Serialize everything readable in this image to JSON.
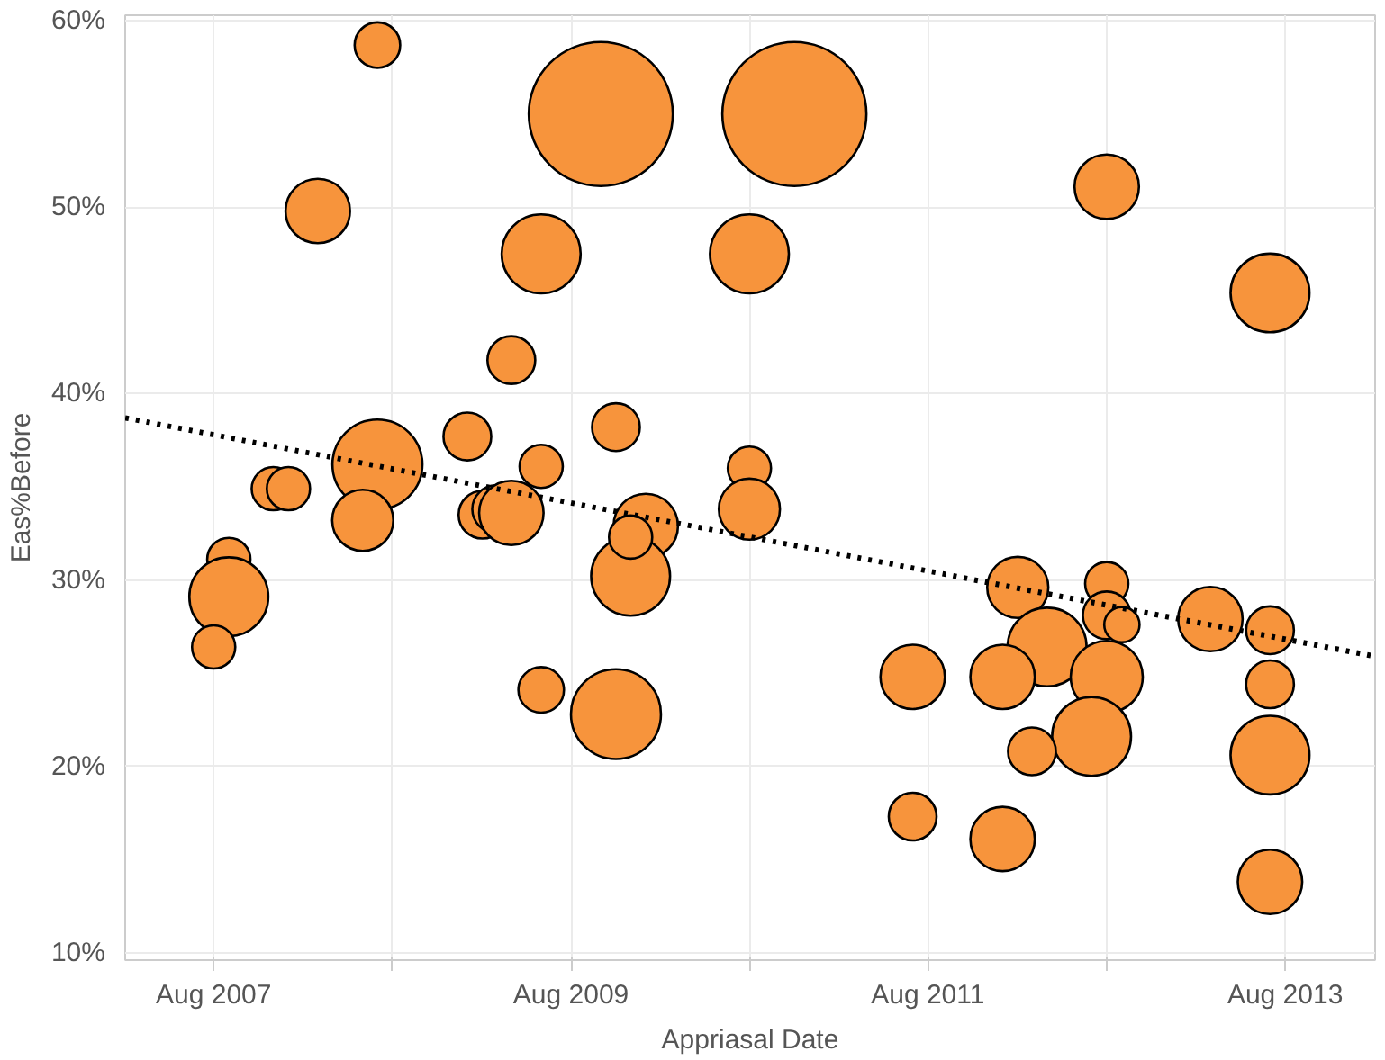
{
  "chart_data": {
    "type": "bubble",
    "xlabel": "Appriasal Date",
    "ylabel": "Eas%Before",
    "xlim": [
      "2007-02",
      "2014-02"
    ],
    "ylim": [
      9.6,
      60.3
    ],
    "xticks": [
      {
        "value": "2007-08",
        "label": "Aug 2007"
      },
      {
        "value": "2008-08",
        "label": null
      },
      {
        "value": "2009-08",
        "label": "Aug 2009"
      },
      {
        "value": "2010-08",
        "label": null
      },
      {
        "value": "2011-08",
        "label": "Aug 2011"
      },
      {
        "value": "2012-08",
        "label": null
      },
      {
        "value": "2013-08",
        "label": "Aug 2013"
      }
    ],
    "yticks": [
      {
        "value": 10,
        "label": "10%"
      },
      {
        "value": 20,
        "label": "20%"
      },
      {
        "value": 30,
        "label": "30%"
      },
      {
        "value": 40,
        "label": "40%"
      },
      {
        "value": 50,
        "label": "50%"
      },
      {
        "value": 60,
        "label": "60%"
      }
    ],
    "grid": true,
    "line_style": "dotted",
    "series": [
      {
        "color": "#f7943c",
        "x": [
          "2008-07",
          "2008-03",
          "2009-10",
          "2010-11",
          "2009-06",
          "2010-08",
          "2009-04",
          "2009-11",
          "2009-01",
          "2008-07",
          "2009-06",
          "2010-08",
          "2007-12",
          "2008-01",
          "2008-06",
          "2009-02",
          "2009-03",
          "2009-04",
          "2010-01",
          "2009-12",
          "2009-11",
          "2009-06",
          "2007-09",
          "2007-09",
          "2007-08",
          "2010-08",
          "2012-02",
          "2012-08",
          "2012-08",
          "2012-09",
          "2012-04",
          "2011-07",
          "2012-01",
          "2012-08",
          "2012-07",
          "2012-03",
          "2011-07",
          "2012-01",
          "2013-03",
          "2013-07",
          "2013-07",
          "2013-07",
          "2013-07",
          "2012-08",
          "2013-07",
          "2009-12"
        ],
        "values": [
          58.7,
          49.8,
          55.0,
          55.0,
          47.5,
          47.5,
          41.8,
          38.2,
          37.7,
          36.2,
          36.1,
          36.0,
          34.9,
          34.9,
          33.2,
          33.5,
          33.8,
          33.6,
          32.9,
          30.2,
          22.8,
          24.1,
          31.1,
          29.1,
          26.4,
          33.8,
          29.6,
          29.8,
          28.1,
          27.6,
          26.4,
          24.8,
          24.8,
          24.8,
          21.6,
          20.8,
          17.3,
          16.1,
          27.9,
          27.3,
          24.4,
          20.6,
          13.8,
          51.1,
          45.4,
          32.3
        ],
        "sizes": [
          0.1,
          0.2,
          1,
          1,
          0.3,
          0.3,
          0.11,
          0.11,
          0.11,
          0.39,
          0.09,
          0.09,
          0.09,
          0.09,
          0.18,
          0.11,
          0.11,
          0.2,
          0.2,
          0.3,
          0.39,
          0.1,
          0.09,
          0.3,
          0.09,
          0.18,
          0.18,
          0.09,
          0.11,
          0.06,
          0.3,
          0.2,
          0.2,
          0.25,
          0.3,
          0.11,
          0.11,
          0.2,
          0.2,
          0.11,
          0.11,
          0.3,
          0.2,
          0.2,
          0.3,
          0.09
        ]
      },
      {
        "type": "line",
        "color": "#000000",
        "x": [
          "2007-02",
          "2014-02"
        ],
        "values": [
          38.7,
          25.9
        ]
      }
    ]
  }
}
